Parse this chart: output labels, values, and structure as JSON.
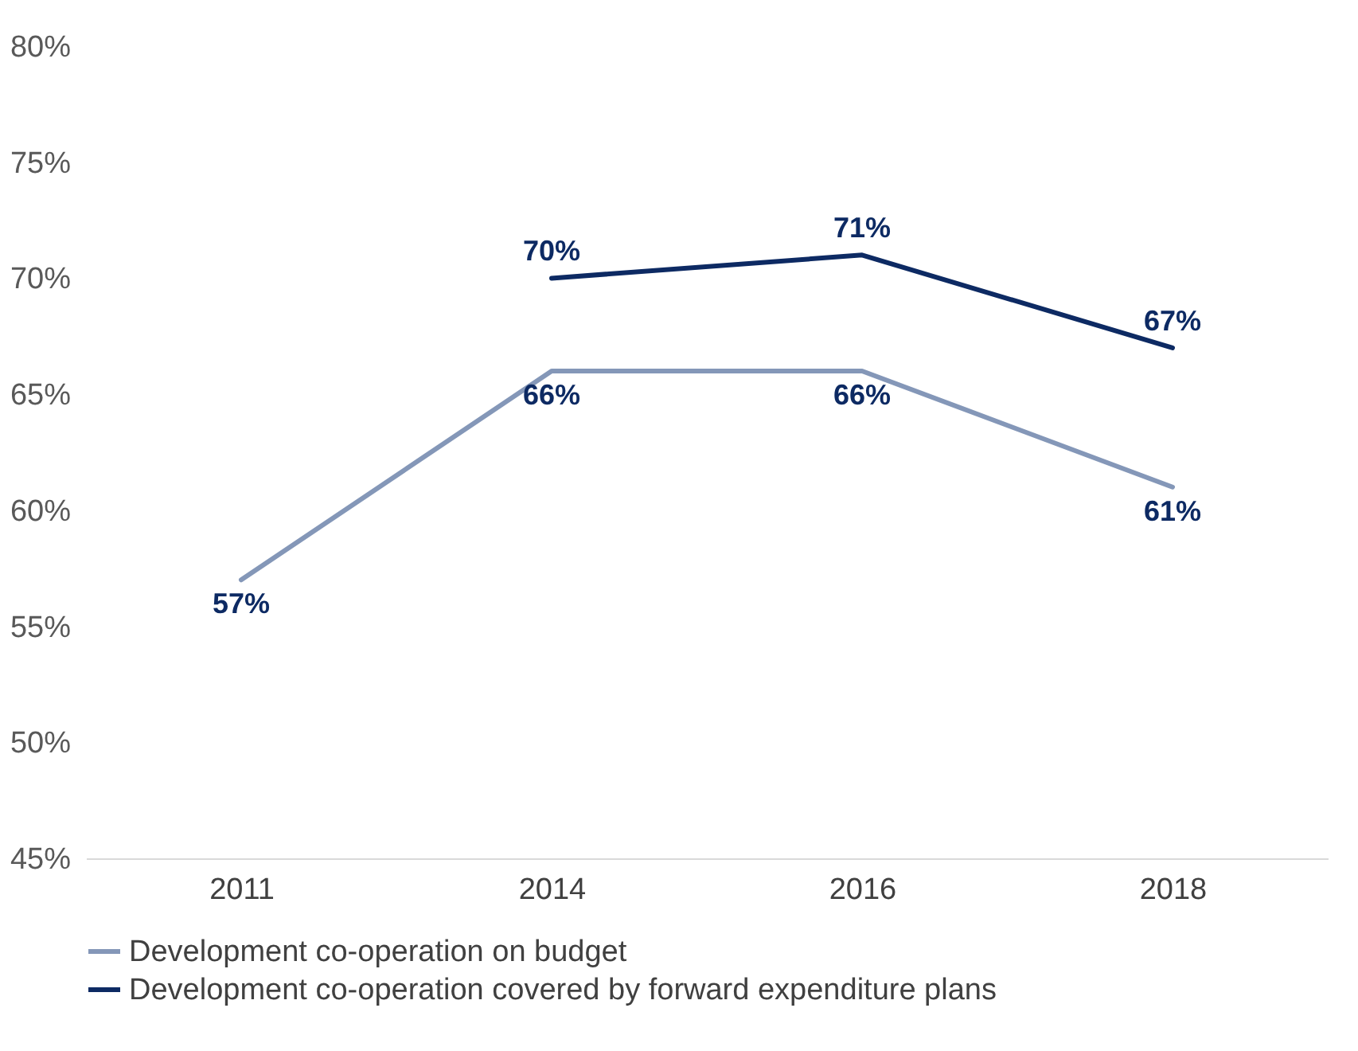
{
  "chart_data": {
    "type": "line",
    "categories": [
      "2011",
      "2014",
      "2016",
      "2018"
    ],
    "series": [
      {
        "name": "Development co-operation on budget",
        "color": "#8497b8",
        "values": [
          57,
          66,
          66,
          61
        ],
        "value_labels": [
          "57%",
          "66%",
          "66%",
          "61%"
        ]
      },
      {
        "name": "Development co-operation covered by forward expenditure plans",
        "color": "#0d2a63",
        "values": [
          null,
          70,
          71,
          67
        ],
        "value_labels": [
          null,
          "70%",
          "71%",
          "67%"
        ]
      }
    ],
    "ylim": [
      45,
      80
    ],
    "yticks": [
      {
        "value": 45,
        "label": "45%"
      },
      {
        "value": 50,
        "label": "50%"
      },
      {
        "value": 55,
        "label": "55%"
      },
      {
        "value": 60,
        "label": "60%"
      },
      {
        "value": 65,
        "label": "65%"
      },
      {
        "value": 70,
        "label": "70%"
      },
      {
        "value": 75,
        "label": "75%"
      },
      {
        "value": 80,
        "label": "80%"
      }
    ],
    "grid": false,
    "legend": "bottom",
    "marker": "none",
    "line_style": "solid"
  }
}
